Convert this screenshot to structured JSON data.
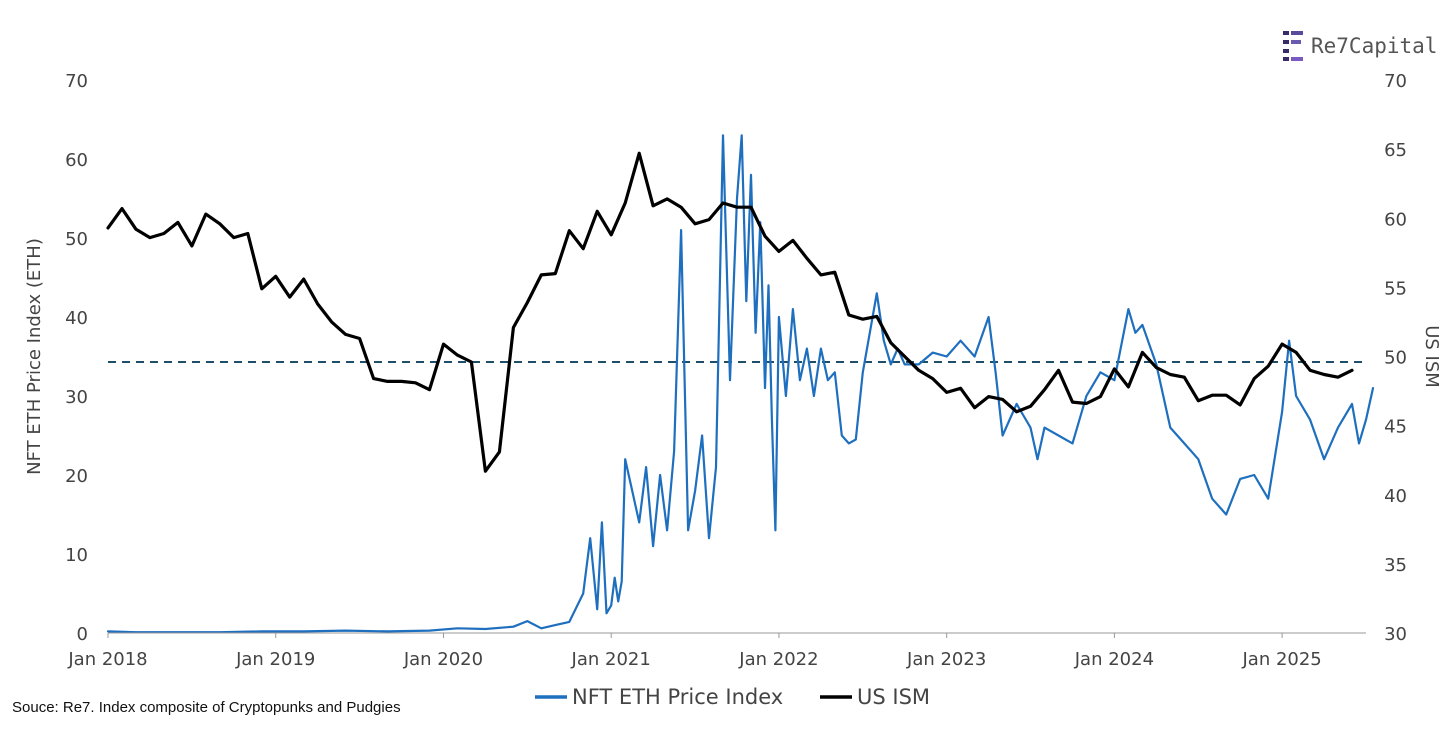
{
  "logo": {
    "text": "Re7Capital",
    "icon": "re7-logo-icon"
  },
  "source_note": "Souce: Re7. Index composite of Cryptopunks and Pudgies",
  "chart_data": {
    "type": "line",
    "title": "",
    "xlabel": "",
    "x_ticks": [
      "Jan 2018",
      "Jan 2019",
      "Jan 2020",
      "Jan 2021",
      "Jan 2022",
      "Jan 2023",
      "Jan 2024",
      "Jan 2025"
    ],
    "x_range": [
      "2018-01",
      "2025-07"
    ],
    "y_left": {
      "label": "NFT ETH Price Index (ETH)",
      "ylim": [
        0,
        70
      ],
      "ticks": [
        0,
        10,
        20,
        30,
        40,
        50,
        60,
        70
      ]
    },
    "y_right": {
      "label": "US ISM",
      "ylim": [
        30,
        70
      ],
      "ticks": [
        30,
        35,
        40,
        45,
        50,
        55,
        60,
        65,
        70
      ]
    },
    "reference_line": {
      "axis": "right",
      "value": 49.6,
      "style": "dashed",
      "color": "#1f4e6b"
    },
    "legend_position": "bottom-center",
    "grid": false,
    "series": [
      {
        "name": "NFT ETH Price Index",
        "axis": "left",
        "color": "#1f6fbf",
        "points": [
          [
            "2018-01",
            0.2
          ],
          [
            "2018-03",
            0.1
          ],
          [
            "2018-06",
            0.1
          ],
          [
            "2018-09",
            0.1
          ],
          [
            "2018-12",
            0.2
          ],
          [
            "2019-03",
            0.2
          ],
          [
            "2019-06",
            0.3
          ],
          [
            "2019-09",
            0.2
          ],
          [
            "2019-12",
            0.3
          ],
          [
            "2020-02",
            0.6
          ],
          [
            "2020-04",
            0.5
          ],
          [
            "2020-06",
            0.8
          ],
          [
            "2020-07",
            1.5
          ],
          [
            "2020-08",
            0.6
          ],
          [
            "2020-09",
            1.0
          ],
          [
            "2020-10",
            1.4
          ],
          [
            "2020-11",
            5.0
          ],
          [
            "2020-11",
            12.0
          ],
          [
            "2020-12",
            3.0
          ],
          [
            "2020-12",
            14.0
          ],
          [
            "2020-12",
            2.5
          ],
          [
            "2021-01",
            3.5
          ],
          [
            "2021-01",
            7.0
          ],
          [
            "2021-01",
            4.0
          ],
          [
            "2021-01",
            6.5
          ],
          [
            "2021-02",
            22.0
          ],
          [
            "2021-02",
            18.0
          ],
          [
            "2021-03",
            14.0
          ],
          [
            "2021-03",
            21.0
          ],
          [
            "2021-04",
            11.0
          ],
          [
            "2021-04",
            20.0
          ],
          [
            "2021-05",
            13.0
          ],
          [
            "2021-05",
            23.0
          ],
          [
            "2021-06",
            51.0
          ],
          [
            "2021-06",
            13.0
          ],
          [
            "2021-07",
            18.0
          ],
          [
            "2021-07",
            25.0
          ],
          [
            "2021-08",
            12.0
          ],
          [
            "2021-08",
            21.0
          ],
          [
            "2021-09",
            63.0
          ],
          [
            "2021-09",
            32.0
          ],
          [
            "2021-10",
            55.0
          ],
          [
            "2021-10",
            63.0
          ],
          [
            "2021-10",
            42.0
          ],
          [
            "2021-11",
            58.0
          ],
          [
            "2021-11",
            38.0
          ],
          [
            "2021-11",
            52.0
          ],
          [
            "2021-12",
            31.0
          ],
          [
            "2021-12",
            44.0
          ],
          [
            "2021-12",
            27.0
          ],
          [
            "2021-12",
            13.0
          ],
          [
            "2022-01",
            40.0
          ],
          [
            "2022-01",
            30.0
          ],
          [
            "2022-02",
            41.0
          ],
          [
            "2022-02",
            32.0
          ],
          [
            "2022-03",
            36.0
          ],
          [
            "2022-03",
            30.0
          ],
          [
            "2022-04",
            36.0
          ],
          [
            "2022-04",
            32.0
          ],
          [
            "2022-05",
            33.0
          ],
          [
            "2022-05",
            25.0
          ],
          [
            "2022-06",
            24.0
          ],
          [
            "2022-06",
            24.5
          ],
          [
            "2022-07",
            33.0
          ],
          [
            "2022-08",
            43.0
          ],
          [
            "2022-08",
            37.0
          ],
          [
            "2022-09",
            34.0
          ],
          [
            "2022-09",
            36.0
          ],
          [
            "2022-10",
            34.0
          ],
          [
            "2022-11",
            34.0
          ],
          [
            "2022-12",
            35.5
          ],
          [
            "2023-01",
            35.0
          ],
          [
            "2023-02",
            37.0
          ],
          [
            "2023-03",
            35.0
          ],
          [
            "2023-04",
            40.0
          ],
          [
            "2023-04",
            33.0
          ],
          [
            "2023-05",
            25.0
          ],
          [
            "2023-06",
            29.0
          ],
          [
            "2023-07",
            26.0
          ],
          [
            "2023-07",
            22.0
          ],
          [
            "2023-08",
            26.0
          ],
          [
            "2023-09",
            25.0
          ],
          [
            "2023-10",
            24.0
          ],
          [
            "2023-11",
            30.0
          ],
          [
            "2023-12",
            33.0
          ],
          [
            "2024-01",
            32.0
          ],
          [
            "2024-02",
            41.0
          ],
          [
            "2024-02",
            38.0
          ],
          [
            "2024-03",
            39.0
          ],
          [
            "2024-04",
            34.0
          ],
          [
            "2024-05",
            26.0
          ],
          [
            "2024-06",
            24.0
          ],
          [
            "2024-07",
            22.0
          ],
          [
            "2024-08",
            17.0
          ],
          [
            "2024-09",
            15.0
          ],
          [
            "2024-10",
            19.5
          ],
          [
            "2024-11",
            20.0
          ],
          [
            "2024-12",
            17.0
          ],
          [
            "2025-01",
            28.0
          ],
          [
            "2025-01",
            37.0
          ],
          [
            "2025-02",
            30.0
          ],
          [
            "2025-03",
            27.0
          ],
          [
            "2025-04",
            22.0
          ],
          [
            "2025-05",
            26.0
          ],
          [
            "2025-06",
            29.0
          ],
          [
            "2025-06",
            24.0
          ],
          [
            "2025-07",
            27.0
          ],
          [
            "2025-07",
            31.0
          ]
        ]
      },
      {
        "name": "US ISM",
        "axis": "right",
        "color": "#000000",
        "points": [
          [
            "2018-01",
            59.3
          ],
          [
            "2018-02",
            60.7
          ],
          [
            "2018-03",
            59.2
          ],
          [
            "2018-04",
            58.6
          ],
          [
            "2018-05",
            58.9
          ],
          [
            "2018-06",
            59.7
          ],
          [
            "2018-07",
            58.0
          ],
          [
            "2018-08",
            60.3
          ],
          [
            "2018-09",
            59.6
          ],
          [
            "2018-10",
            58.6
          ],
          [
            "2018-11",
            58.9
          ],
          [
            "2018-12",
            54.9
          ],
          [
            "2019-01",
            55.8
          ],
          [
            "2019-02",
            54.3
          ],
          [
            "2019-03",
            55.6
          ],
          [
            "2019-04",
            53.8
          ],
          [
            "2019-05",
            52.5
          ],
          [
            "2019-06",
            51.6
          ],
          [
            "2019-07",
            51.3
          ],
          [
            "2019-08",
            48.4
          ],
          [
            "2019-09",
            48.2
          ],
          [
            "2019-10",
            48.2
          ],
          [
            "2019-11",
            48.1
          ],
          [
            "2019-12",
            47.6
          ],
          [
            "2020-01",
            50.9
          ],
          [
            "2020-02",
            50.1
          ],
          [
            "2020-03",
            49.6
          ],
          [
            "2020-04",
            41.7
          ],
          [
            "2020-05",
            43.1
          ],
          [
            "2020-06",
            52.1
          ],
          [
            "2020-07",
            53.9
          ],
          [
            "2020-08",
            55.9
          ],
          [
            "2020-09",
            56.0
          ],
          [
            "2020-10",
            59.1
          ],
          [
            "2020-11",
            57.8
          ],
          [
            "2020-12",
            60.5
          ],
          [
            "2021-01",
            58.8
          ],
          [
            "2021-02",
            61.1
          ],
          [
            "2021-03",
            64.7
          ],
          [
            "2021-04",
            60.9
          ],
          [
            "2021-05",
            61.4
          ],
          [
            "2021-06",
            60.8
          ],
          [
            "2021-07",
            59.6
          ],
          [
            "2021-08",
            59.9
          ],
          [
            "2021-09",
            61.1
          ],
          [
            "2021-10",
            60.8
          ],
          [
            "2021-11",
            60.8
          ],
          [
            "2021-12",
            58.7
          ],
          [
            "2022-01",
            57.6
          ],
          [
            "2022-02",
            58.4
          ],
          [
            "2022-03",
            57.1
          ],
          [
            "2022-04",
            55.9
          ],
          [
            "2022-05",
            56.1
          ],
          [
            "2022-06",
            53.0
          ],
          [
            "2022-07",
            52.7
          ],
          [
            "2022-08",
            52.9
          ],
          [
            "2022-09",
            51.0
          ],
          [
            "2022-10",
            50.0
          ],
          [
            "2022-11",
            49.0
          ],
          [
            "2022-12",
            48.4
          ],
          [
            "2023-01",
            47.4
          ],
          [
            "2023-02",
            47.7
          ],
          [
            "2023-03",
            46.3
          ],
          [
            "2023-04",
            47.1
          ],
          [
            "2023-05",
            46.9
          ],
          [
            "2023-06",
            46.0
          ],
          [
            "2023-07",
            46.4
          ],
          [
            "2023-08",
            47.6
          ],
          [
            "2023-09",
            49.0
          ],
          [
            "2023-10",
            46.7
          ],
          [
            "2023-11",
            46.6
          ],
          [
            "2023-12",
            47.1
          ],
          [
            "2024-01",
            49.1
          ],
          [
            "2024-02",
            47.8
          ],
          [
            "2024-03",
            50.3
          ],
          [
            "2024-04",
            49.2
          ],
          [
            "2024-05",
            48.7
          ],
          [
            "2024-06",
            48.5
          ],
          [
            "2024-07",
            46.8
          ],
          [
            "2024-08",
            47.2
          ],
          [
            "2024-09",
            47.2
          ],
          [
            "2024-10",
            46.5
          ],
          [
            "2024-11",
            48.4
          ],
          [
            "2024-12",
            49.3
          ],
          [
            "2025-01",
            50.9
          ],
          [
            "2025-02",
            50.3
          ],
          [
            "2025-03",
            49.0
          ],
          [
            "2025-04",
            48.7
          ],
          [
            "2025-05",
            48.5
          ],
          [
            "2025-06",
            49.0
          ]
        ]
      }
    ]
  }
}
